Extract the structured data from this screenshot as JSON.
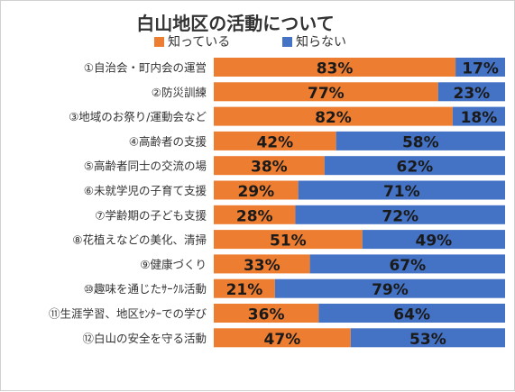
{
  "chart_data": {
    "type": "bar",
    "orientation": "horizontal",
    "stacked": true,
    "percent": true,
    "title": "白山地区の活動について",
    "xlim": [
      0,
      100
    ],
    "grid": false,
    "legend_position": "top",
    "categories": [
      "①自治会・町内会の運営",
      "②防災訓練",
      "③地域のお祭り/運動会など",
      "④高齢者の支援",
      "⑤高齢者同士の交流の場",
      "⑥未就学児の子育て支援",
      "⑦学齢期の子ども支援",
      "⑧花植えなどの美化、清掃",
      "⑨健康づくり",
      "⑩趣味を通じたｻｰｸﾙ活動",
      "⑪生涯学習、地区ｾﾝﾀｰでの学び",
      "⑫白山の安全を守る活動"
    ],
    "series": [
      {
        "name": "知っている",
        "color": "#ED7D31",
        "values": [
          83,
          77,
          82,
          42,
          38,
          29,
          28,
          51,
          33,
          21,
          36,
          47
        ]
      },
      {
        "name": "知らない",
        "color": "#4472C4",
        "values": [
          17,
          23,
          18,
          58,
          62,
          71,
          72,
          49,
          67,
          79,
          64,
          53
        ]
      }
    ],
    "value_suffix": "%"
  }
}
